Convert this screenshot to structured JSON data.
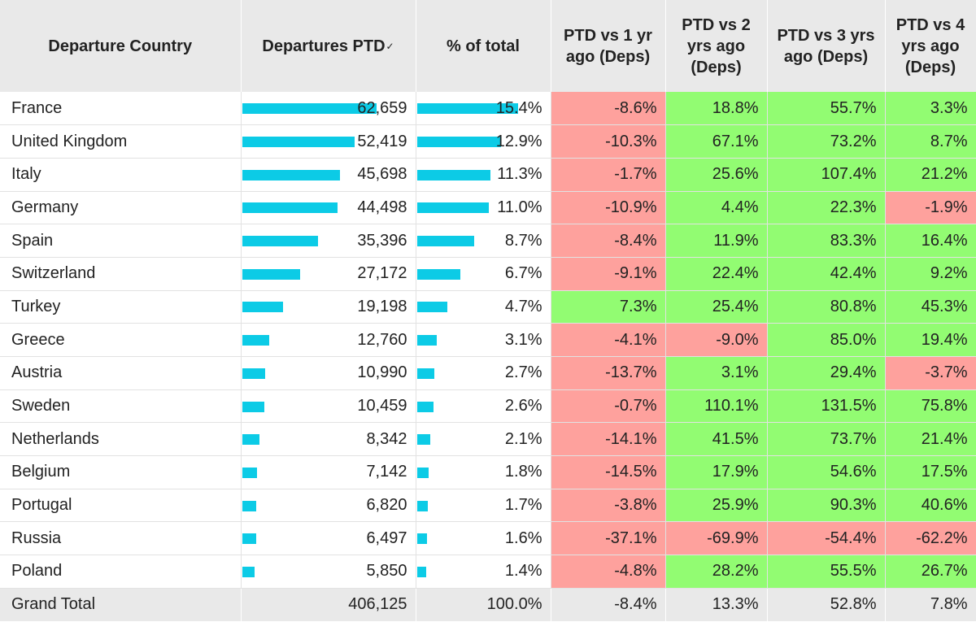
{
  "columns": {
    "country": "Departure Country",
    "departures": "Departures PTD",
    "share": "% of total",
    "vs1": "PTD vs 1 yr ago (Deps)",
    "vs2": "PTD vs 2 yrs ago (Deps)",
    "vs3": "PTD vs 3 yrs ago (Deps)",
    "vs4": "PTD vs 4 yrs ago (Deps)"
  },
  "sort_icon": "sort-down-icon",
  "colors": {
    "bar": "#0ccbe6",
    "positive": "#92fc72",
    "negative": "#fea19d",
    "header": "#e9e9e9"
  },
  "chart_data": {
    "type": "table",
    "max_departures": 62659,
    "max_share": 15.4,
    "rows": [
      {
        "country": "France",
        "departures": "62,659",
        "departures_num": 62659,
        "share": "15.4%",
        "share_num": 15.4,
        "vs1": "-8.6%",
        "vs2": "18.8%",
        "vs3": "55.7%",
        "vs4": "3.3%"
      },
      {
        "country": "United Kingdom",
        "departures": "52,419",
        "departures_num": 52419,
        "share": "12.9%",
        "share_num": 12.9,
        "vs1": "-10.3%",
        "vs2": "67.1%",
        "vs3": "73.2%",
        "vs4": "8.7%"
      },
      {
        "country": "Italy",
        "departures": "45,698",
        "departures_num": 45698,
        "share": "11.3%",
        "share_num": 11.3,
        "vs1": "-1.7%",
        "vs2": "25.6%",
        "vs3": "107.4%",
        "vs4": "21.2%"
      },
      {
        "country": "Germany",
        "departures": "44,498",
        "departures_num": 44498,
        "share": "11.0%",
        "share_num": 11.0,
        "vs1": "-10.9%",
        "vs2": "4.4%",
        "vs3": "22.3%",
        "vs4": "-1.9%"
      },
      {
        "country": "Spain",
        "departures": "35,396",
        "departures_num": 35396,
        "share": "8.7%",
        "share_num": 8.7,
        "vs1": "-8.4%",
        "vs2": "11.9%",
        "vs3": "83.3%",
        "vs4": "16.4%"
      },
      {
        "country": "Switzerland",
        "departures": "27,172",
        "departures_num": 27172,
        "share": "6.7%",
        "share_num": 6.7,
        "vs1": "-9.1%",
        "vs2": "22.4%",
        "vs3": "42.4%",
        "vs4": "9.2%"
      },
      {
        "country": "Turkey",
        "departures": "19,198",
        "departures_num": 19198,
        "share": "4.7%",
        "share_num": 4.7,
        "vs1": "7.3%",
        "vs2": "25.4%",
        "vs3": "80.8%",
        "vs4": "45.3%"
      },
      {
        "country": "Greece",
        "departures": "12,760",
        "departures_num": 12760,
        "share": "3.1%",
        "share_num": 3.1,
        "vs1": "-4.1%",
        "vs2": "-9.0%",
        "vs3": "85.0%",
        "vs4": "19.4%"
      },
      {
        "country": "Austria",
        "departures": "10,990",
        "departures_num": 10990,
        "share": "2.7%",
        "share_num": 2.7,
        "vs1": "-13.7%",
        "vs2": "3.1%",
        "vs3": "29.4%",
        "vs4": "-3.7%"
      },
      {
        "country": "Sweden",
        "departures": "10,459",
        "departures_num": 10459,
        "share": "2.6%",
        "share_num": 2.6,
        "vs1": "-0.7%",
        "vs2": "110.1%",
        "vs3": "131.5%",
        "vs4": "75.8%"
      },
      {
        "country": "Netherlands",
        "departures": "8,342",
        "departures_num": 8342,
        "share": "2.1%",
        "share_num": 2.1,
        "vs1": "-14.1%",
        "vs2": "41.5%",
        "vs3": "73.7%",
        "vs4": "21.4%"
      },
      {
        "country": "Belgium",
        "departures": "7,142",
        "departures_num": 7142,
        "share": "1.8%",
        "share_num": 1.8,
        "vs1": "-14.5%",
        "vs2": "17.9%",
        "vs3": "54.6%",
        "vs4": "17.5%"
      },
      {
        "country": "Portugal",
        "departures": "6,820",
        "departures_num": 6820,
        "share": "1.7%",
        "share_num": 1.7,
        "vs1": "-3.8%",
        "vs2": "25.9%",
        "vs3": "90.3%",
        "vs4": "40.6%"
      },
      {
        "country": "Russia",
        "departures": "6,497",
        "departures_num": 6497,
        "share": "1.6%",
        "share_num": 1.6,
        "vs1": "-37.1%",
        "vs2": "-69.9%",
        "vs3": "-54.4%",
        "vs4": "-62.2%"
      },
      {
        "country": "Poland",
        "departures": "5,850",
        "departures_num": 5850,
        "share": "1.4%",
        "share_num": 1.4,
        "vs1": "-4.8%",
        "vs2": "28.2%",
        "vs3": "55.5%",
        "vs4": "26.7%"
      }
    ],
    "total": {
      "country": "Grand Total",
      "departures": "406,125",
      "share": "100.0%",
      "vs1": "-8.4%",
      "vs2": "13.3%",
      "vs3": "52.8%",
      "vs4": "7.8%"
    }
  }
}
